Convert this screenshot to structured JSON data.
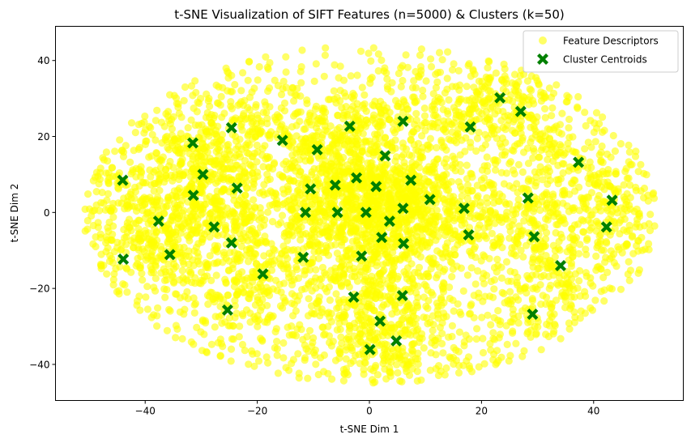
{
  "chart_data": {
    "type": "scatter",
    "title": "t-SNE Visualization of SIFT Features (n=5000) & Clusters (k=50)",
    "xlabel": "t-SNE Dim 1",
    "ylabel": "t-SNE Dim 2",
    "xlim": [
      -56,
      56
    ],
    "ylim": [
      -49.5,
      49
    ],
    "xticks": [
      -40,
      -20,
      0,
      20,
      40
    ],
    "yticks": [
      -40,
      -20,
      0,
      20,
      40
    ],
    "grid": false,
    "legend_position": "top-right",
    "series": [
      {
        "name": "Feature Descriptors",
        "marker": "circle",
        "color": "#ffff00",
        "alpha": 0.6,
        "count": 5000,
        "x_range": [
          -51,
          51.5
        ],
        "y_range": [
          -45,
          44.5
        ]
      },
      {
        "name": "Cluster Centroids",
        "marker": "X",
        "color": "#008000",
        "points": [
          [
            23.3,
            30.2
          ],
          [
            27,
            26.6
          ],
          [
            6,
            24
          ],
          [
            -24.6,
            22.3
          ],
          [
            -3.5,
            22.7
          ],
          [
            18,
            22.5
          ],
          [
            -15.5,
            19
          ],
          [
            -31.5,
            18.3
          ],
          [
            -9.3,
            16.5
          ],
          [
            2.8,
            14.9
          ],
          [
            37.3,
            13.2
          ],
          [
            -29.7,
            10
          ],
          [
            -44,
            8.5
          ],
          [
            -2.3,
            9.1
          ],
          [
            1.2,
            6.8
          ],
          [
            7.4,
            8.5
          ],
          [
            -6.1,
            7.2
          ],
          [
            -23.6,
            6.4
          ],
          [
            -10.5,
            6.2
          ],
          [
            -31.4,
            4.5
          ],
          [
            10.8,
            3.4
          ],
          [
            28.3,
            3.8
          ],
          [
            43.3,
            3.2
          ],
          [
            -11.4,
            0
          ],
          [
            -5.7,
            0
          ],
          [
            -0.6,
            0
          ],
          [
            6,
            1.1
          ],
          [
            16.9,
            1.1
          ],
          [
            -37.6,
            -2.3
          ],
          [
            3.6,
            -2.3
          ],
          [
            -27.7,
            -3.8
          ],
          [
            42.3,
            -3.8
          ],
          [
            17.7,
            -5.9
          ],
          [
            2.2,
            -6.6
          ],
          [
            29.4,
            -6.4
          ],
          [
            -24.6,
            -8
          ],
          [
            6.1,
            -8.2
          ],
          [
            -35.6,
            -11.1
          ],
          [
            -1.4,
            -11.5
          ],
          [
            -11.8,
            -11.8
          ],
          [
            -43.9,
            -12.3
          ],
          [
            34.1,
            -14
          ],
          [
            -19,
            -16.2
          ],
          [
            -2.8,
            -22.3
          ],
          [
            5.9,
            -21.9
          ],
          [
            -25.3,
            -25.7
          ],
          [
            29.1,
            -26.8
          ],
          [
            1.9,
            -28.6
          ],
          [
            4.8,
            -33.8
          ],
          [
            0.1,
            -36.1
          ]
        ]
      }
    ]
  }
}
